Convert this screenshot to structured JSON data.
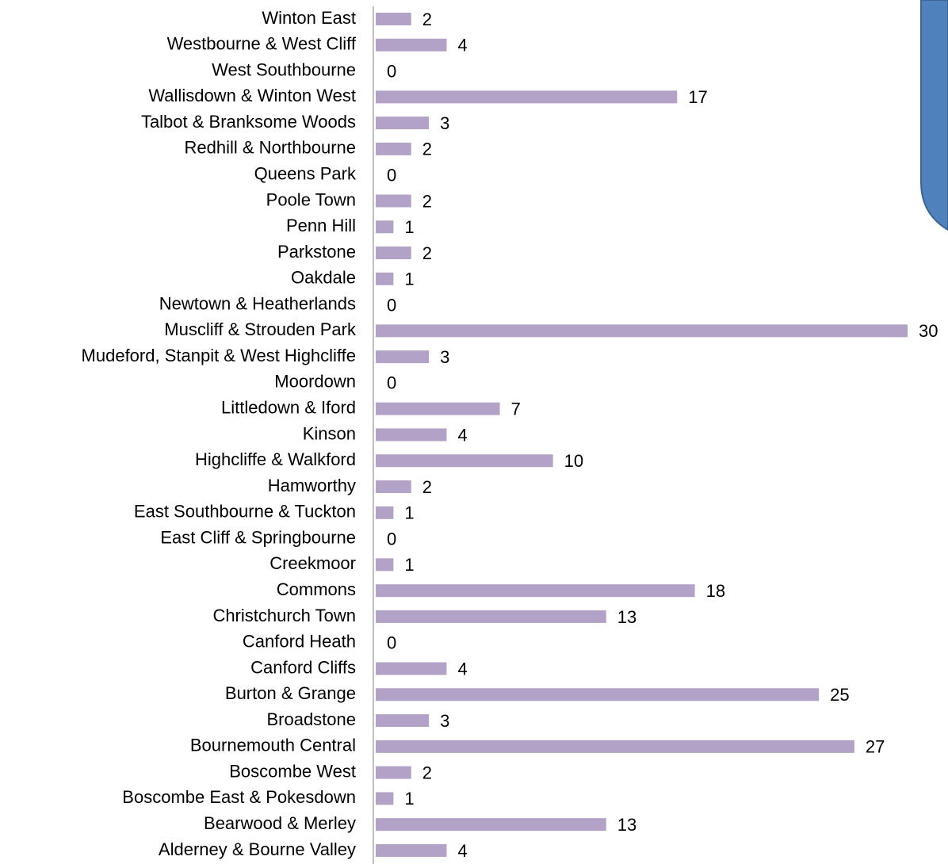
{
  "chart_data": {
    "type": "barh",
    "categories": [
      "Winton East",
      "Westbourne & West Cliff",
      "West Southbourne",
      "Wallisdown & Winton West",
      "Talbot & Branksome Woods",
      "Redhill & Northbourne",
      "Queens Park",
      "Poole Town",
      "Penn Hill",
      "Parkstone",
      "Oakdale",
      "Newtown & Heatherlands",
      "Muscliff & Strouden Park",
      "Mudeford, Stanpit & West Highcliffe",
      "Moordown",
      "Littledown & Iford",
      "Kinson",
      "Highcliffe & Walkford",
      "Hamworthy",
      "East Southbourne & Tuckton",
      "East Cliff & Springbourne",
      "Creekmoor",
      "Commons",
      "Christchurch Town",
      "Canford Heath",
      "Canford Cliffs",
      "Burton & Grange",
      "Broadstone",
      "Bournemouth Central",
      "Boscombe West",
      "Boscombe East & Pokesdown",
      "Bearwood & Merley",
      "Alderney & Bourne Valley"
    ],
    "values": [
      2,
      4,
      0,
      17,
      3,
      2,
      0,
      2,
      1,
      2,
      1,
      0,
      30,
      3,
      0,
      7,
      4,
      10,
      2,
      1,
      0,
      1,
      18,
      13,
      0,
      4,
      25,
      3,
      27,
      2,
      1,
      13,
      4
    ],
    "color": "#b3a2c7",
    "xlim": [
      0,
      30
    ]
  }
}
